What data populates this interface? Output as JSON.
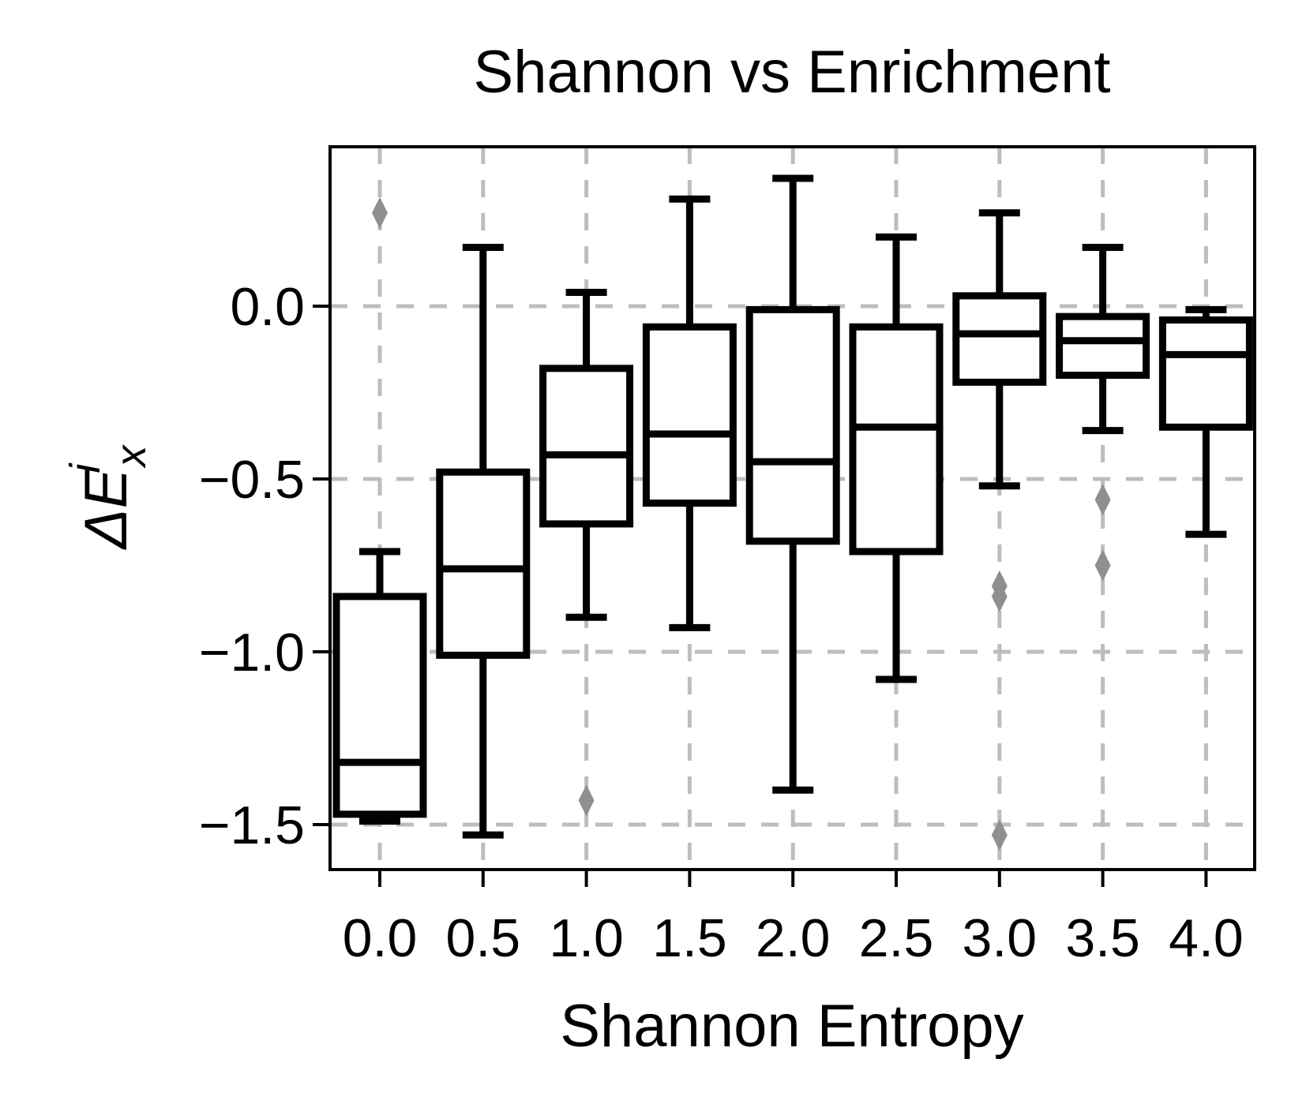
{
  "chart_data": {
    "type": "box",
    "title": "Shannon vs Enrichment",
    "xlabel": "Shannon Entropy",
    "ylabel_parts": {
      "symbol": "ΔE",
      "superscript": "i",
      "subscript": "x"
    },
    "ylim": [
      -1.63,
      0.46
    ],
    "y_ticks": [
      0.0,
      -0.5,
      -1.0,
      -1.5
    ],
    "y_tick_labels": [
      "0.0",
      "−0.5",
      "−1.0",
      "−1.5"
    ],
    "categories": [
      "0.0",
      "0.5",
      "1.0",
      "1.5",
      "2.0",
      "2.5",
      "3.0",
      "3.5",
      "4.0"
    ],
    "grid": true,
    "flier_color": "#8f8f8f",
    "boxes": [
      {
        "category": "0.0",
        "whislo": -1.49,
        "q1": -1.47,
        "med": -1.32,
        "q3": -0.84,
        "whishi": -0.71,
        "fliers": [
          0.27
        ]
      },
      {
        "category": "0.5",
        "whislo": -1.53,
        "q1": -1.01,
        "med": -0.76,
        "q3": -0.48,
        "whishi": 0.17,
        "fliers": []
      },
      {
        "category": "1.0",
        "whislo": -0.9,
        "q1": -0.63,
        "med": -0.43,
        "q3": -0.18,
        "whishi": 0.04,
        "fliers": [
          -1.43
        ]
      },
      {
        "category": "1.5",
        "whislo": -0.93,
        "q1": -0.57,
        "med": -0.37,
        "q3": -0.06,
        "whishi": 0.31,
        "fliers": []
      },
      {
        "category": "2.0",
        "whislo": -1.4,
        "q1": -0.68,
        "med": -0.45,
        "q3": -0.01,
        "whishi": 0.37,
        "fliers": []
      },
      {
        "category": "2.5",
        "whislo": -1.08,
        "q1": -0.71,
        "med": -0.35,
        "q3": -0.06,
        "whishi": 0.2,
        "fliers": []
      },
      {
        "category": "3.0",
        "whislo": -0.52,
        "q1": -0.22,
        "med": -0.08,
        "q3": 0.03,
        "whishi": 0.27,
        "fliers": [
          -0.81,
          -0.84,
          -1.53
        ]
      },
      {
        "category": "3.5",
        "whislo": -0.36,
        "q1": -0.2,
        "med": -0.1,
        "q3": -0.03,
        "whishi": 0.17,
        "fliers": [
          -0.56,
          -0.75
        ]
      },
      {
        "category": "4.0",
        "whislo": -0.66,
        "q1": -0.35,
        "med": -0.14,
        "q3": -0.04,
        "whishi": -0.01,
        "fliers": []
      }
    ]
  }
}
